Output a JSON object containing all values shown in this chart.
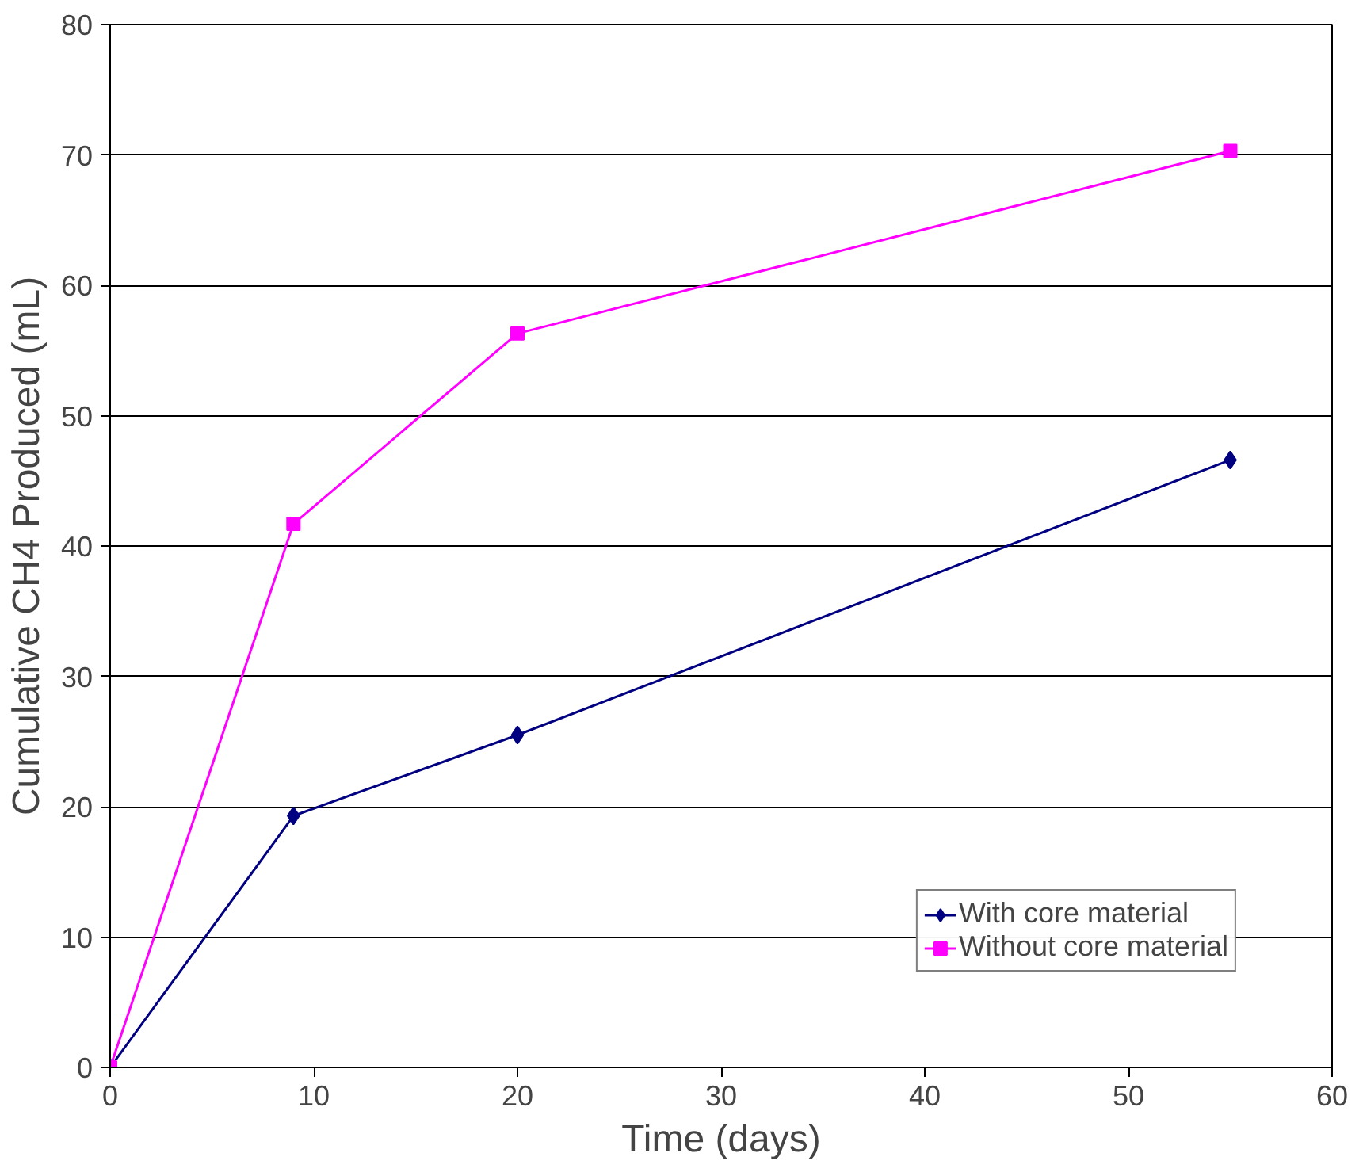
{
  "chart_data": {
    "type": "line",
    "xlabel": "Time (days)",
    "ylabel": "Cumulative CH4 Produced (mL)",
    "xlim": [
      0,
      60
    ],
    "xticks": [
      0,
      10,
      20,
      30,
      40,
      50,
      60
    ],
    "ylim": [
      0,
      80
    ],
    "yticks": [
      0,
      10,
      20,
      30,
      40,
      50,
      60,
      70,
      80
    ],
    "grid": "y",
    "legend": "bottom right",
    "line_style": "solid",
    "series": [
      {
        "name": "With core material",
        "color": "#000080",
        "marker": "diamond",
        "x": [
          0,
          9,
          20,
          55
        ],
        "values": [
          0,
          19.3,
          25.5,
          46.6
        ]
      },
      {
        "name": "Without core material",
        "color": "#ff00ff",
        "marker": "square",
        "x": [
          0,
          9,
          20,
          55
        ],
        "values": [
          0,
          41.7,
          56.3,
          70.3
        ]
      }
    ]
  }
}
